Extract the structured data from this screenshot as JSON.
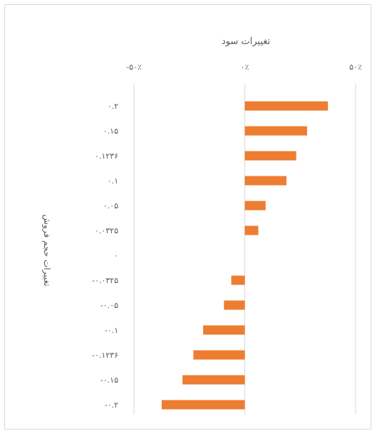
{
  "chart_data": {
    "type": "bar",
    "orientation": "horizontal",
    "title": "تغییرات سود",
    "xlabel": "",
    "ylabel": "تغییرات حجم فروش",
    "categories": [
      "۰.۲",
      "۰.۱۵",
      "۰.۱۲۳۶",
      "۰.۱",
      "۰.۰۵",
      "۰.۰۳۲۵",
      "۰",
      "-۰.۰۳۲۵",
      "-۰.۰۵",
      "-۰.۱",
      "-۰.۱۲۳۶",
      "-۰.۱۵",
      "-۰.۲"
    ],
    "values": [
      37.5,
      28.1,
      23.2,
      18.8,
      9.4,
      6.1,
      0,
      -6.1,
      -9.4,
      -18.8,
      -23.2,
      -28.1,
      -37.5
    ],
    "xlim": [
      -50,
      50
    ],
    "xticks": [
      -50,
      0,
      50
    ],
    "xtick_labels": [
      "-۵۰٪",
      "۰٪",
      "۵۰٪"
    ],
    "grid": true,
    "bar_color": "#ed7d31",
    "grid_color": "#d9d9d9"
  }
}
